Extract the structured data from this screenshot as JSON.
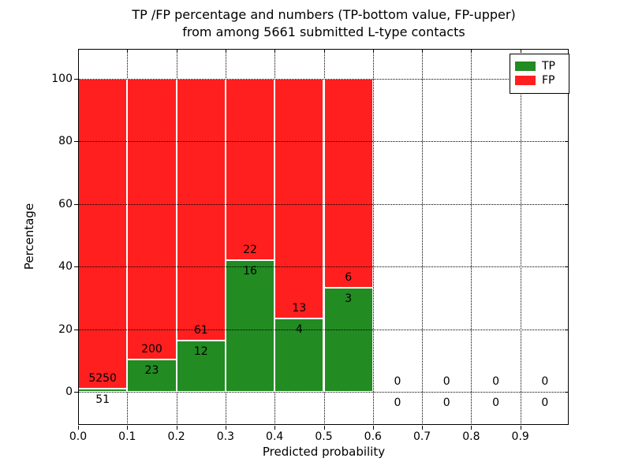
{
  "window": {
    "background": "#ffffff"
  },
  "chart_data": {
    "type": "bar",
    "stacked": true,
    "normalized_to_percent": true,
    "title": "TP /FP percentage and numbers (TP-bottom value, FP-upper)",
    "subtitle": "from among 5661 submitted L-type contacts",
    "xlabel": "Predicted probability",
    "ylabel": "Percentage",
    "total_submitted_contacts": 5661,
    "xlim": [
      0.0,
      1.0
    ],
    "ylim": [
      0,
      100
    ],
    "grid": true,
    "legend_position": "upper right",
    "series": [
      {
        "name": "TP",
        "color": "#228b22"
      },
      {
        "name": "FP",
        "color": "#ff1f1f"
      }
    ],
    "x_tick_labels": [
      "0.0",
      "0.1",
      "0.2",
      "0.3",
      "0.4",
      "0.5",
      "0.6",
      "0.7",
      "0.8",
      "0.9"
    ],
    "y_tick_values": [
      0,
      20,
      40,
      60,
      80,
      100
    ],
    "bins": [
      {
        "range": [
          0.0,
          0.1
        ],
        "tp": 51,
        "fp": 5250
      },
      {
        "range": [
          0.1,
          0.2
        ],
        "tp": 23,
        "fp": 200
      },
      {
        "range": [
          0.2,
          0.3
        ],
        "tp": 12,
        "fp": 61
      },
      {
        "range": [
          0.3,
          0.4
        ],
        "tp": 16,
        "fp": 22
      },
      {
        "range": [
          0.4,
          0.5
        ],
        "tp": 4,
        "fp": 13
      },
      {
        "range": [
          0.5,
          0.6
        ],
        "tp": 3,
        "fp": 6
      },
      {
        "range": [
          0.6,
          0.7
        ],
        "tp": 0,
        "fp": 0
      },
      {
        "range": [
          0.7,
          0.8
        ],
        "tp": 0,
        "fp": 0
      },
      {
        "range": [
          0.8,
          0.9
        ],
        "tp": 0,
        "fp": 0
      },
      {
        "range": [
          0.9,
          1.0
        ],
        "tp": 0,
        "fp": 0
      }
    ]
  }
}
